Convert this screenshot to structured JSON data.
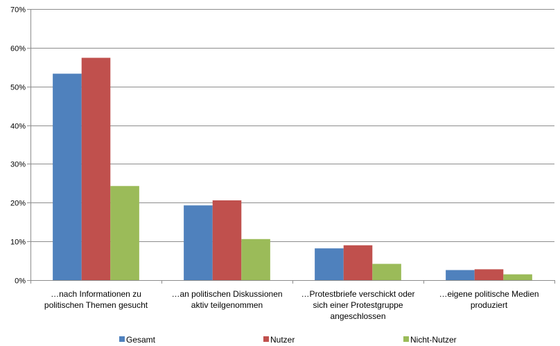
{
  "chart_data": {
    "type": "bar",
    "categories": [
      [
        "…nach Informationen zu",
        "politischen  Themen gesucht"
      ],
      [
        "…an politischen  Diskussionen",
        "aktiv teilgenommen"
      ],
      [
        "…Protestbriefe verschickt oder",
        "sich einer Protestgruppe",
        "angeschlossen"
      ],
      [
        "…eigene politische Medien",
        "produziert"
      ]
    ],
    "series": [
      {
        "name": "Gesamt",
        "color": "#4F81BD",
        "values": [
          53.3,
          19.3,
          8.2,
          2.6
        ]
      },
      {
        "name": "Nutzer",
        "color": "#C0504D",
        "values": [
          57.4,
          20.6,
          9.0,
          2.8
        ]
      },
      {
        "name": "Nicht-Nutzer",
        "color": "#9BBB59",
        "values": [
          24.3,
          10.6,
          4.2,
          1.5
        ]
      }
    ],
    "y_ticks": [
      "0%",
      "10%",
      "20%",
      "30%",
      "40%",
      "50%",
      "60%",
      "70%"
    ],
    "ylim": [
      0,
      70
    ],
    "grid": true,
    "legend_position": "bottom",
    "xlabel": "",
    "ylabel": ""
  }
}
